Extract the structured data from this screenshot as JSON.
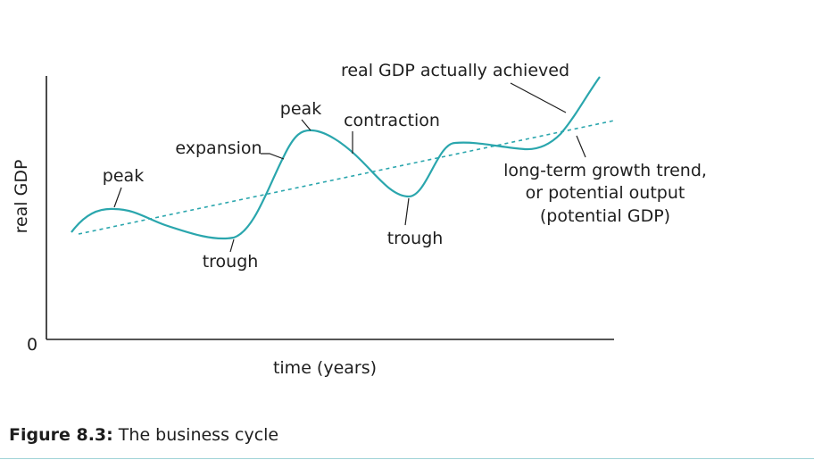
{
  "diagram": {
    "axis_y_label": "real GDP",
    "axis_x_label": "time (years)",
    "origin_label": "0",
    "labels": {
      "peak_1": "peak",
      "trough_1": "trough",
      "expansion": "expansion",
      "peak_2": "peak",
      "contraction": "contraction",
      "trough_2": "trough",
      "actual": "real GDP actually achieved",
      "trend_line1": "long-term growth trend,",
      "trend_line2": "or potential output",
      "trend_line3": "(potential GDP)"
    },
    "colors": {
      "curve": "#2aa6ad",
      "text": "#1e1e1e",
      "rule": "#9fd3d6"
    }
  },
  "caption": {
    "figure_number": "Figure 8.3:",
    "text": " The business cycle"
  }
}
